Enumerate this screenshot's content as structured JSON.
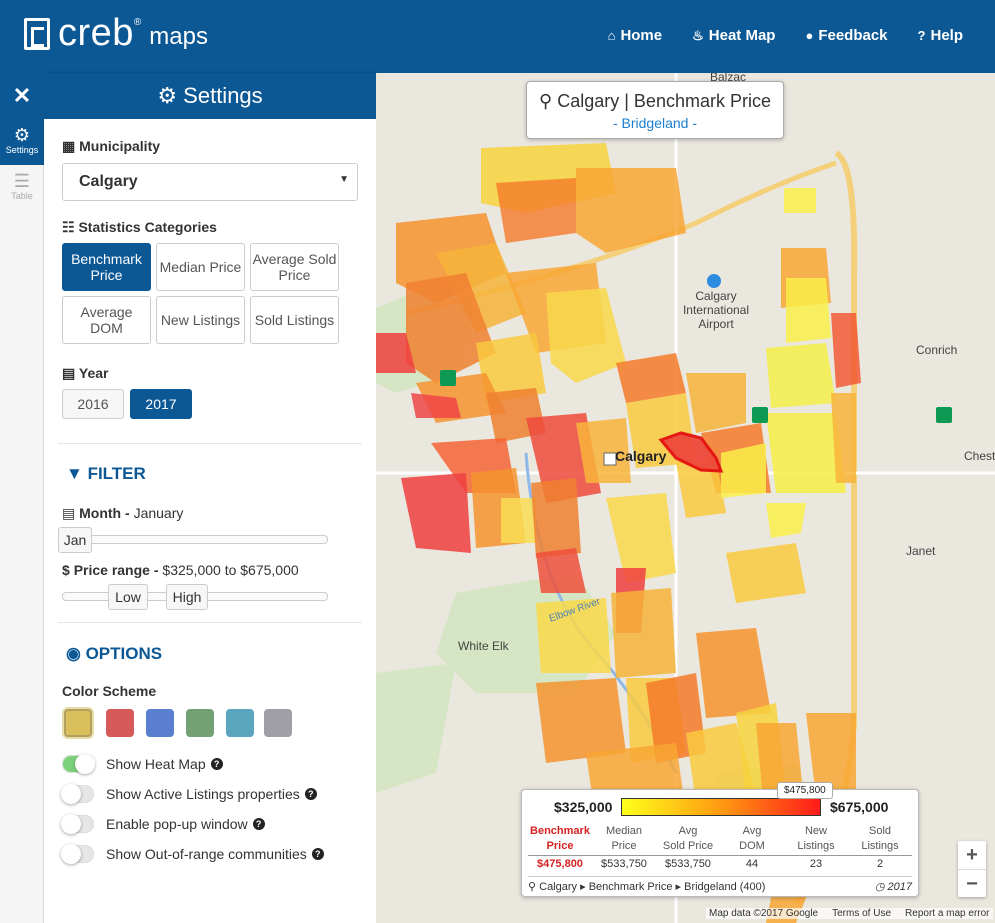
{
  "header": {
    "brand": "creb",
    "brand_reg": "®",
    "brand_sub": "maps",
    "nav": [
      {
        "label": "Home",
        "icon": "home-icon"
      },
      {
        "label": "Heat Map",
        "icon": "fire-icon"
      },
      {
        "label": "Feedback",
        "icon": "chat-icon"
      },
      {
        "label": "Help",
        "icon": "question-icon"
      }
    ]
  },
  "rail": {
    "settings_label": "Settings",
    "table_label": "Table"
  },
  "panel": {
    "title": "Settings",
    "municipality_label": "Municipality",
    "municipality_value": "Calgary",
    "categories_label": "Statistics Categories",
    "categories": [
      "Benchmark Price",
      "Median Price",
      "Average Sold Price",
      "Average DOM",
      "New Listings",
      "Sold Listings"
    ],
    "selected_category": "Benchmark Price",
    "year_label": "Year",
    "years": [
      "2016",
      "2017"
    ],
    "selected_year": "2017",
    "filter_heading": "FILTER",
    "month_label": "Month",
    "month_value": "January",
    "month_handle": "Jan",
    "price_label": "Price range",
    "price_value": "$325,000 to $675,000",
    "price_low_handle": "Low",
    "price_high_handle": "High",
    "options_heading": "OPTIONS",
    "color_scheme_label": "Color Scheme",
    "swatches": [
      "#d9be5c",
      "#d65a5a",
      "#5b7fd0",
      "#73a173",
      "#5ba5bf",
      "#a09fa6"
    ],
    "toggles": [
      {
        "label": "Show Heat Map",
        "on": true
      },
      {
        "label": "Show Active Listings properties",
        "on": false
      },
      {
        "label": "Enable pop-up window",
        "on": false
      },
      {
        "label": "Show Out-of-range communities",
        "on": false
      }
    ]
  },
  "map": {
    "title": "Calgary | Benchmark Price",
    "subtitle": "- Bridgeland -",
    "labels": {
      "calgary": "Calgary",
      "airport": "Calgary International Airport",
      "conrich": "Conrich",
      "chestermere": "Cheste",
      "janet": "Janet",
      "white_elk": "White Elk",
      "balzac": "Balzac",
      "elbow_river": "Elbow River"
    },
    "zoom_in": "+",
    "zoom_out": "−",
    "attribution": [
      "Map data ©2017 Google",
      "Terms of Use",
      "Report a map error"
    ]
  },
  "legend": {
    "min": "$325,000",
    "max": "$675,000",
    "marker": "$475,800",
    "columns": [
      {
        "h1": "Benchmark",
        "h2": "Price",
        "value": "$475,800",
        "active": true
      },
      {
        "h1": "Median",
        "h2": "Price",
        "value": "$533,750",
        "active": false
      },
      {
        "h1": "Avg",
        "h2": "Sold Price",
        "value": "$533,750",
        "active": false
      },
      {
        "h1": "Avg",
        "h2": "DOM",
        "value": "44",
        "active": false
      },
      {
        "h1": "New",
        "h2": "Listings",
        "value": "23",
        "active": false
      },
      {
        "h1": "Sold",
        "h2": "Listings",
        "value": "2",
        "active": false
      }
    ],
    "breadcrumb": [
      "Calgary",
      "Benchmark Price",
      "Bridgeland (400)"
    ],
    "year": "2017"
  }
}
